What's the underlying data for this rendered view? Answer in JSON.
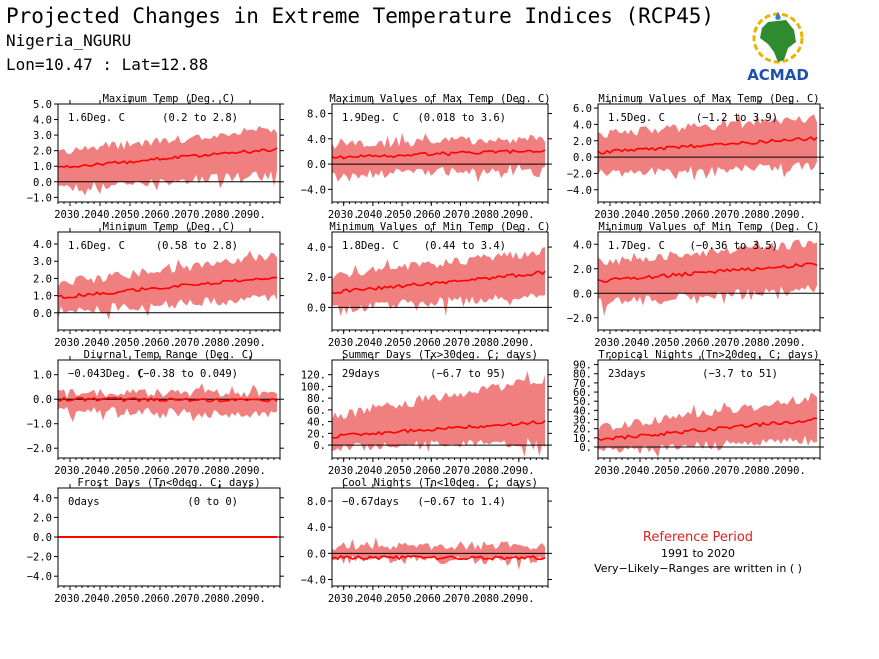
{
  "header": {
    "title": "Projected Changes in Extreme Temperature Indices (RCP45)",
    "location": "Nigeria_NGURU",
    "coords": "Lon=10.47 : Lat=12.88"
  },
  "logo": {
    "text": "ACMAD"
  },
  "reference": {
    "title": "Reference Period",
    "period": "1991 to 2020",
    "note": "Very−Likely−Ranges are written in ( )"
  },
  "colors": {
    "band": "#f08080",
    "line": "#ff0000",
    "zero": "#000000",
    "frame": "#000000"
  },
  "chart_data": [
    {
      "type": "area",
      "title": "Maximum Temp (Deg. C)",
      "value_label": "1.6Deg. C",
      "range_label": "(0.2 to 2.8)",
      "x": [
        2026,
        2100
      ],
      "xticks": [
        "2030.",
        "2040.",
        "2050.",
        "2060.",
        "2070.",
        "2080.",
        "2090."
      ],
      "yticks": [
        -1.0,
        0.0,
        1.0,
        2.0,
        3.0,
        4.0,
        5.0
      ],
      "ytick_labels": [
        "−1.0",
        "0.0",
        "1.0",
        "2.0",
        "3.0",
        "4.0",
        "5.0"
      ],
      "ylim": [
        -1.3,
        5.0
      ],
      "series_start": 0.9,
      "series_end": 2.1,
      "band_low_start": -0.3,
      "band_low_end": 0.6,
      "band_high_start": 1.8,
      "band_high_end": 3.3
    },
    {
      "type": "area",
      "title": "Maximum Values of Max Temp (Deg. C)",
      "value_label": "1.9Deg. C",
      "range_label": "(0.018 to 3.6)",
      "x": [
        2026,
        2100
      ],
      "xticks": [
        "2030.",
        "2040.",
        "2050.",
        "2060.",
        "2070.",
        "2080.",
        "2090."
      ],
      "yticks": [
        -4.0,
        0.0,
        4.0,
        8.0
      ],
      "ytick_labels": [
        "−4.0",
        "0.0",
        "4.0",
        "8.0"
      ],
      "ylim": [
        -6.0,
        9.5
      ],
      "series_start": 1.0,
      "series_end": 2.2,
      "band_low_start": -1.5,
      "band_low_end": -0.3,
      "band_high_start": 2.8,
      "band_high_end": 3.8
    },
    {
      "type": "area",
      "title": "Minimum Values of Max Temp (Deg. C)",
      "value_label": "1.5Deg. C",
      "range_label": "(−1.2 to 3.9)",
      "x": [
        2026,
        2100
      ],
      "xticks": [
        "2030.",
        "2040.",
        "2050.",
        "2060.",
        "2070.",
        "2080.",
        "2090."
      ],
      "yticks": [
        -4.0,
        -2.0,
        0.0,
        2.0,
        4.0,
        6.0
      ],
      "ytick_labels": [
        "−4.0",
        "−2.0",
        "0.0",
        "2.0",
        "4.0",
        "6.0"
      ],
      "ylim": [
        -5.5,
        6.5
      ],
      "series_start": 0.6,
      "series_end": 2.3,
      "band_low_start": -1.8,
      "band_low_end": -0.8,
      "band_high_start": 2.6,
      "band_high_end": 4.5
    },
    {
      "type": "area",
      "title": "Minimum Temp (Deg. C)",
      "value_label": "1.6Deg. C",
      "range_label": "(0.58 to 2.8)",
      "x": [
        2026,
        2100
      ],
      "xticks": [
        "2030.",
        "2040.",
        "2050.",
        "2060.",
        "2070.",
        "2080.",
        "2090."
      ],
      "yticks": [
        0.0,
        1.0,
        2.0,
        3.0,
        4.0
      ],
      "ytick_labels": [
        "0.0",
        "1.0",
        "2.0",
        "3.0",
        "4.0"
      ],
      "ylim": [
        -1.0,
        4.7
      ],
      "series_start": 0.9,
      "series_end": 2.1,
      "band_low_start": 0.2,
      "band_low_end": 1.0,
      "band_high_start": 1.6,
      "band_high_end": 3.2
    },
    {
      "type": "area",
      "title": "Minimum Values of Min Temp (Deg. C)",
      "value_label": "1.8Deg. C",
      "range_label": "(0.44 to 3.4)",
      "x": [
        2026,
        2100
      ],
      "xticks": [
        "2030.",
        "2040.",
        "2050.",
        "2060.",
        "2070.",
        "2080.",
        "2090."
      ],
      "yticks": [
        0.0,
        2.0,
        4.0
      ],
      "ytick_labels": [
        "0.0",
        "2.0",
        "4.0"
      ],
      "ylim": [
        -1.5,
        5.0
      ],
      "series_start": 1.0,
      "series_end": 2.3,
      "band_low_start": 0.0,
      "band_low_end": 1.0,
      "band_high_start": 2.0,
      "band_high_end": 3.6
    },
    {
      "type": "area",
      "title": "Minimum Values of Min Temp (Deg. C)",
      "value_label": "1.7Deg. C",
      "range_label": "(−0.36 to 3.5)",
      "x": [
        2026,
        2100
      ],
      "xticks": [
        "2030.",
        "2040.",
        "2050.",
        "2060.",
        "2070.",
        "2080.",
        "2090."
      ],
      "yticks": [
        -2.0,
        0.0,
        2.0,
        4.0
      ],
      "ytick_labels": [
        "−2.0",
        "0.0",
        "2.0",
        "4.0"
      ],
      "ylim": [
        -3.0,
        5.0
      ],
      "series_start": 1.0,
      "series_end": 2.4,
      "band_low_start": -0.6,
      "band_low_end": 0.6,
      "band_high_start": 2.4,
      "band_high_end": 4.0
    },
    {
      "type": "area",
      "title": "Diurnal Temp Range (Deg. C)",
      "value_label": "−0.043Deg. C",
      "range_label": "(−0.38 to 0.049)",
      "x": [
        2026,
        2100
      ],
      "xticks": [
        "2030.",
        "2040.",
        "2050.",
        "2060.",
        "2070.",
        "2080.",
        "2090."
      ],
      "yticks": [
        -2.0,
        -1.0,
        0.0,
        1.0
      ],
      "ytick_labels": [
        "−2.0",
        "−1.0",
        "0.0",
        "1.0"
      ],
      "ylim": [
        -2.4,
        1.6
      ],
      "series_start": 0.0,
      "series_end": -0.05,
      "band_low_start": -0.3,
      "band_low_end": -0.6,
      "band_high_start": 0.15,
      "band_high_end": 0.2
    },
    {
      "type": "area",
      "title": "Summer Days (Tx>30deg. C; days)",
      "value_label": "29days",
      "range_label": "(−6.7 to 95)",
      "x": [
        2026,
        2100
      ],
      "xticks": [
        "2030.",
        "2040.",
        "2050.",
        "2060.",
        "2070.",
        "2080.",
        "2090."
      ],
      "yticks": [
        0,
        20,
        40,
        60,
        80,
        100,
        120
      ],
      "ytick_labels": [
        "0.",
        "20.",
        "40.",
        "60.",
        "80.",
        "100.",
        "120."
      ],
      "ylim": [
        -22,
        145
      ],
      "series_start": 15,
      "series_end": 40,
      "band_low_start": 0,
      "band_low_end": 8,
      "band_high_start": 45,
      "band_high_end": 110
    },
    {
      "type": "area",
      "title": "Tropical Nights (Tn>20deg. C; days)",
      "value_label": "23days",
      "range_label": "(−3.7 to 51)",
      "x": [
        2026,
        2100
      ],
      "xticks": [
        "2030.",
        "2040.",
        "2050.",
        "2060.",
        "2070.",
        "2080.",
        "2090."
      ],
      "yticks": [
        0,
        10,
        20,
        30,
        40,
        50,
        60,
        70,
        80,
        90
      ],
      "ytick_labels": [
        "0.",
        "10.",
        "20.",
        "30.",
        "40.",
        "50.",
        "60.",
        "70.",
        "80.",
        "90."
      ],
      "ylim": [
        -12,
        95
      ],
      "series_start": 8,
      "series_end": 30,
      "band_low_start": -2,
      "band_low_end": 10,
      "band_high_start": 18,
      "band_high_end": 52
    },
    {
      "type": "area",
      "title": "Frost Days (Tn<0deg. C; days)",
      "value_label": "0days",
      "range_label": "(0 to 0)",
      "x": [
        2026,
        2100
      ],
      "xticks": [
        "2030.",
        "2040.",
        "2050.",
        "2060.",
        "2070.",
        "2080.",
        "2090."
      ],
      "yticks": [
        -4.0,
        -2.0,
        0.0,
        2.0,
        4.0
      ],
      "ytick_labels": [
        "−4.0",
        "−2.0",
        "0.0",
        "2.0",
        "4.0"
      ],
      "ylim": [
        -5.0,
        5.0
      ],
      "series_start": 0.0,
      "series_end": 0.0,
      "band_low_start": 0.0,
      "band_low_end": 0.0,
      "band_high_start": 0.0,
      "band_high_end": 0.0
    },
    {
      "type": "area",
      "title": "Cool Nights (Tn<10deg. C; days)",
      "value_label": "−0.67days",
      "range_label": "(−0.67 to 1.4)",
      "x": [
        2026,
        2100
      ],
      "xticks": [
        "2030.",
        "2040.",
        "2050.",
        "2060.",
        "2070.",
        "2080.",
        "2090."
      ],
      "yticks": [
        -4.0,
        0.0,
        4.0,
        8.0
      ],
      "ytick_labels": [
        "−4.0",
        "0.0",
        "4.0",
        "8.0"
      ],
      "ylim": [
        -5.0,
        10.0
      ],
      "series_start": -0.67,
      "series_end": -0.67,
      "band_low_start": -0.67,
      "band_low_end": -0.67,
      "band_high_start": 0.9,
      "band_high_end": 0.9
    }
  ]
}
